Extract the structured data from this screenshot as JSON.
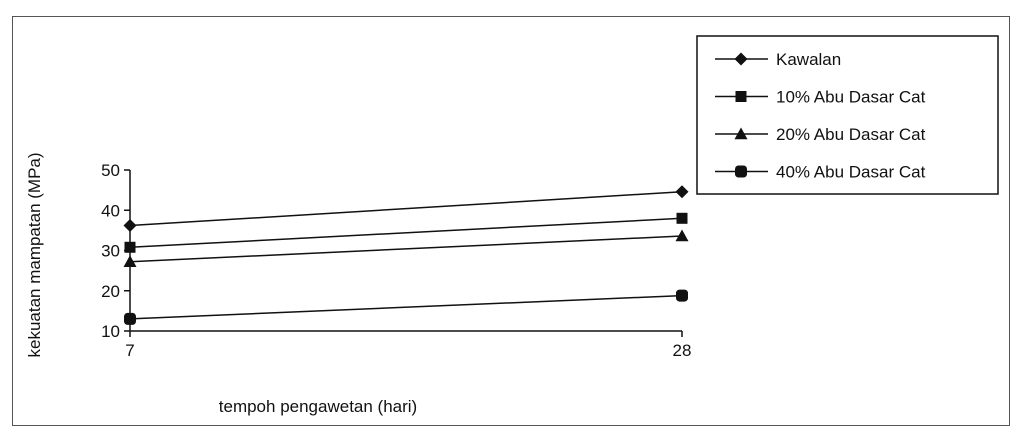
{
  "chart_data": {
    "type": "line",
    "xlabel": "tempoh pengawetan (hari)",
    "ylabel": "kekuatan mampatan (MPa)",
    "x": [
      7,
      28
    ],
    "x_tick_labels": [
      "7",
      "28"
    ],
    "ylim": [
      10,
      50
    ],
    "y_ticks": [
      10,
      20,
      30,
      40,
      50
    ],
    "grid": false,
    "legend_position": "top-right",
    "series": [
      {
        "name": "Kawalan",
        "marker": "diamond",
        "values": [
          36.2,
          44.6
        ]
      },
      {
        "name": "10% Abu Dasar Cat",
        "marker": "square",
        "values": [
          30.8,
          38.0
        ]
      },
      {
        "name": "20% Abu Dasar Cat",
        "marker": "triangle",
        "values": [
          27.2,
          33.6
        ]
      },
      {
        "name": "40% Abu Dasar Cat",
        "marker": "circle-square",
        "values": [
          13.0,
          18.8
        ]
      }
    ],
    "colors": {
      "line": "#111111",
      "marker": "#111111",
      "axis": "#111111"
    }
  }
}
